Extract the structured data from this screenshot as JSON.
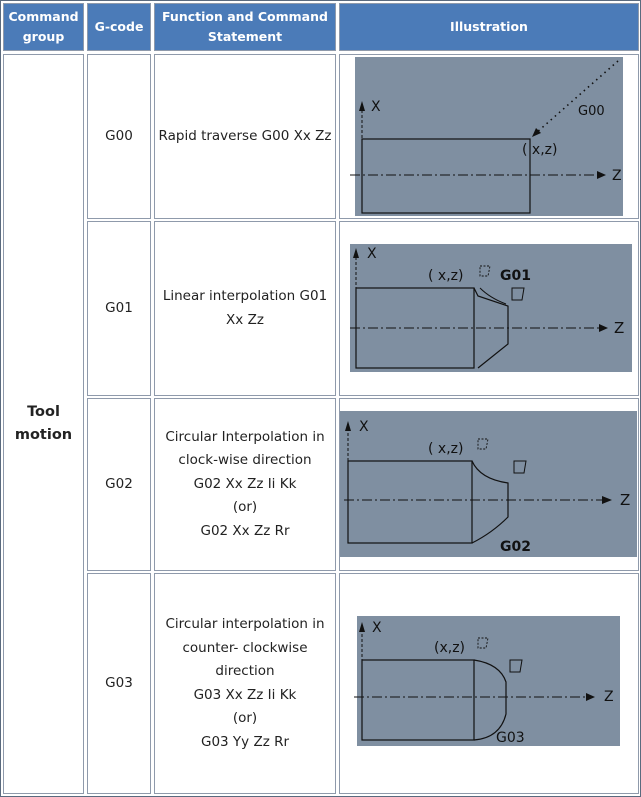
{
  "table": {
    "headers": {
      "group": "Command\ngroup",
      "gcode": "G-code",
      "function": "Function and Command\nStatement",
      "illustration": "Illustration"
    },
    "group_label": "Tool\nmotion",
    "rows": [
      {
        "gcode": "G00",
        "function": "Rapid traverse G00 Xx Zz",
        "illustration": {
          "axis_x": "X",
          "axis_z": "Z",
          "point": "( x,z)",
          "code": "G00"
        }
      },
      {
        "gcode": "G01",
        "function": "Linear interpolation G01\nXx Zz",
        "illustration": {
          "axis_x": "X",
          "axis_z": "Z",
          "point": "( x,z)",
          "code": "G01"
        }
      },
      {
        "gcode": "G02",
        "function": "Circular Interpolation in\nclock-wise direction\nG02 Xx Zz Ii Kk\n(or)\nG02 Xx Zz Rr",
        "illustration": {
          "axis_x": "X",
          "axis_z": "Z",
          "point": "( x,z)",
          "code": "G02"
        }
      },
      {
        "gcode": "G03",
        "function": "Circular interpolation in\ncounter- clockwise\ndirection\nG03 Xx Zz Ii Kk\n(or)\nG03 Yy Zz Rr",
        "illustration": {
          "axis_x": "X",
          "axis_z": "Z",
          "point": "(x,z)",
          "code": "G03"
        }
      }
    ]
  },
  "colors": {
    "header_bg": "#4b7bb8",
    "header_text": "#ffffff",
    "illustration_bg": "#7f8fa1",
    "border": "#8f9aab"
  }
}
